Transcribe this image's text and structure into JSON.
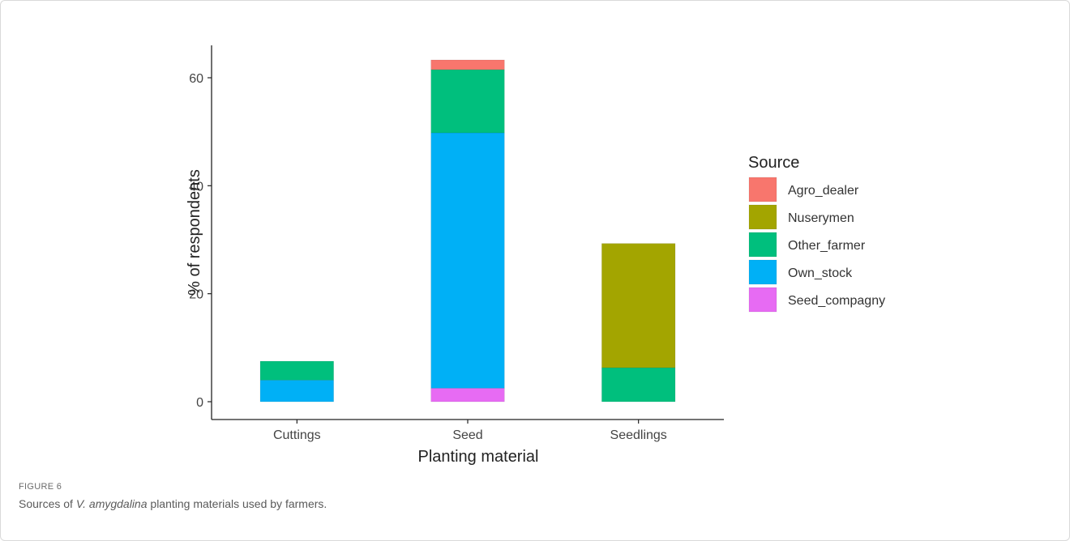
{
  "figure": {
    "label": "FIGURE 6",
    "caption_prefix": "Sources of ",
    "caption_species": "V. amygdalina",
    "caption_suffix": " planting materials used by farmers."
  },
  "chart_data": {
    "type": "bar",
    "stacked": true,
    "title": "",
    "xlabel": "Planting material",
    "ylabel": "% of respondents",
    "categories": [
      "Cuttings",
      "Seed",
      "Seedlings"
    ],
    "ylim": [
      0,
      66
    ],
    "yticks": [
      0,
      20,
      40,
      60
    ],
    "grid": false,
    "legend_title": "Source",
    "legend_position": "right",
    "series": [
      {
        "name": "Seed_compagny",
        "color": "#E76BF3",
        "values": [
          0,
          2.5,
          0
        ]
      },
      {
        "name": "Own_stock",
        "color": "#00B0F6",
        "values": [
          4,
          47.3,
          0
        ]
      },
      {
        "name": "Other_farmer",
        "color": "#00BF7D",
        "values": [
          3.5,
          11.7,
          6.3
        ]
      },
      {
        "name": "Nuserymen",
        "color": "#A3A500",
        "values": [
          0,
          0,
          23
        ]
      },
      {
        "name": "Agro_dealer",
        "color": "#F8766D",
        "values": [
          0,
          1.8,
          0
        ]
      }
    ],
    "legend_order": [
      "Agro_dealer",
      "Nuserymen",
      "Other_farmer",
      "Own_stock",
      "Seed_compagny"
    ]
  }
}
